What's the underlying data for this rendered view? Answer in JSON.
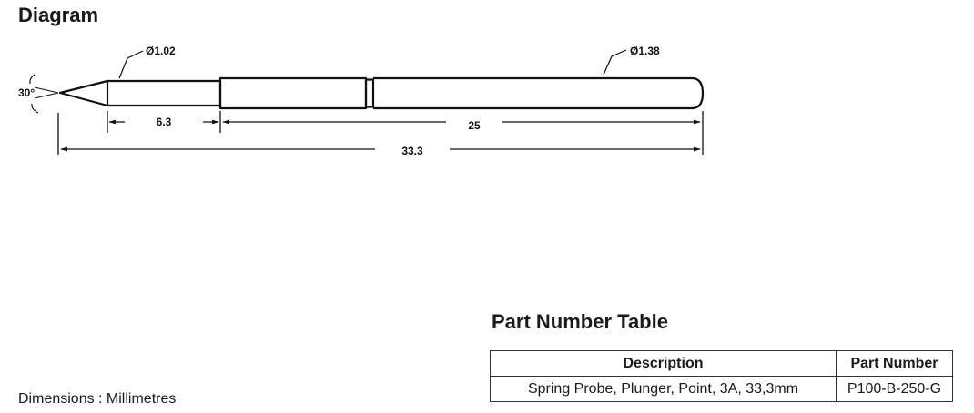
{
  "diagram": {
    "title": "Diagram",
    "dimensions": {
      "tip_angle": "30°",
      "tip_diameter": "Ø1.02",
      "barrel_diameter": "Ø1.38",
      "plunger_length": "6.3",
      "barrel_length": "25",
      "overall_length": "33.3"
    },
    "units_note": "Dimensions : Millimetres"
  },
  "part_table": {
    "title": "Part Number Table",
    "headers": {
      "description": "Description",
      "part_number": "Part Number"
    },
    "rows": [
      {
        "description": "Spring Probe, Plunger, Point, 3A, 33,3mm",
        "part_number": "P100-B-250-G"
      }
    ]
  }
}
